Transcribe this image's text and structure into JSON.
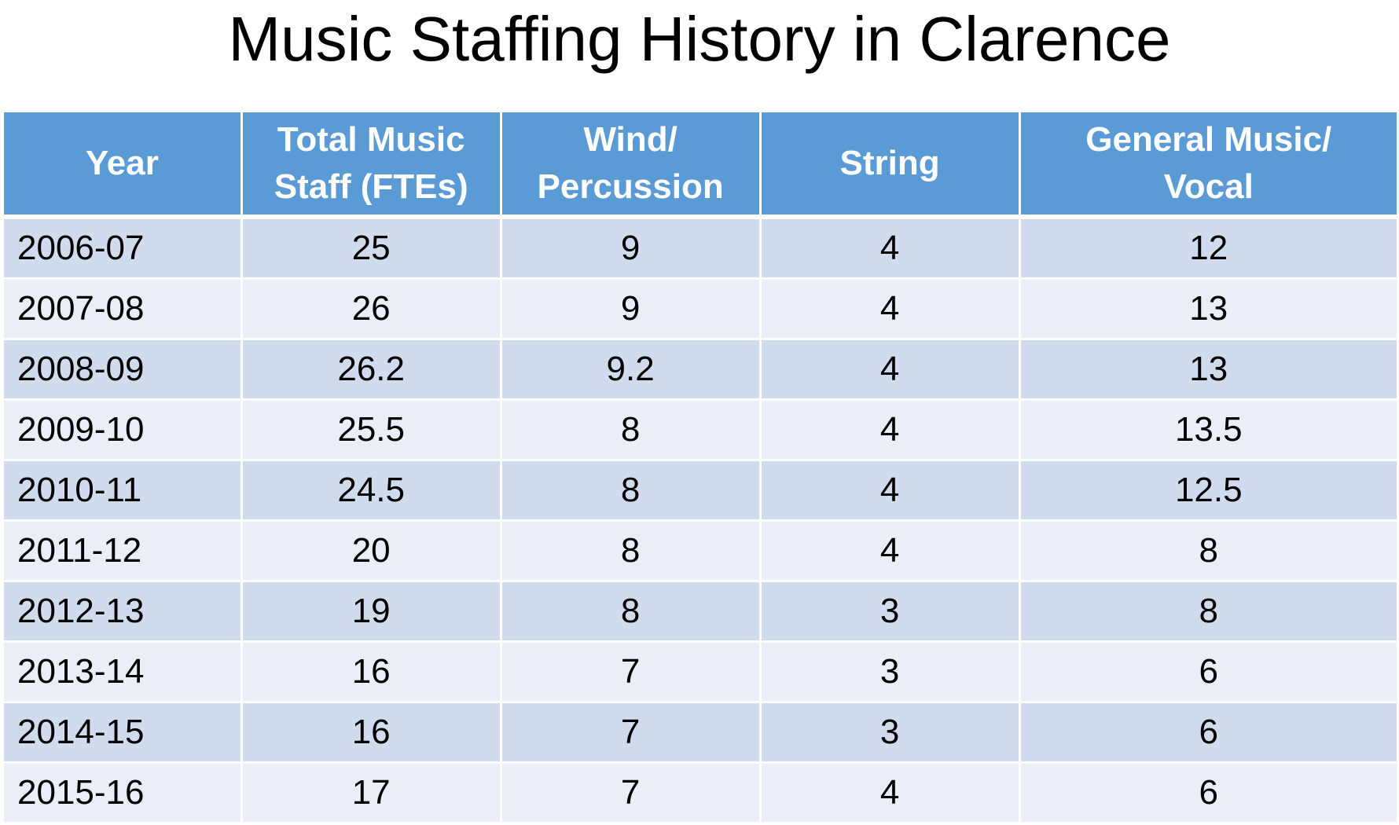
{
  "title": "Music Staffing History in Clarence",
  "table": {
    "headers": [
      [
        "Year"
      ],
      [
        "Total Music",
        "Staff (FTEs)"
      ],
      [
        "Wind/",
        "Percussion"
      ],
      [
        "String"
      ],
      [
        "General Music/",
        "Vocal"
      ]
    ],
    "rows": [
      [
        "2006-07",
        "25",
        "9",
        "4",
        "12"
      ],
      [
        "2007-08",
        "26",
        "9",
        "4",
        "13"
      ],
      [
        "2008-09",
        "26.2",
        "9.2",
        "4",
        "13"
      ],
      [
        "2009-10",
        "25.5",
        "8",
        "4",
        "13.5"
      ],
      [
        "2010-11",
        "24.5",
        "8",
        "4",
        "12.5"
      ],
      [
        "2011-12",
        "20",
        "8",
        "4",
        "8"
      ],
      [
        "2012-13",
        "19",
        "8",
        "3",
        "8"
      ],
      [
        "2013-14",
        "16",
        "7",
        "3",
        "6"
      ],
      [
        "2014-15",
        "16",
        "7",
        "3",
        "6"
      ],
      [
        "2015-16",
        "17",
        "7",
        "4",
        "6"
      ]
    ]
  },
  "colors": {
    "header_bg": "#5b9bd5",
    "row_odd_bg": "#d0dcee",
    "row_even_bg": "#e9eef7"
  }
}
